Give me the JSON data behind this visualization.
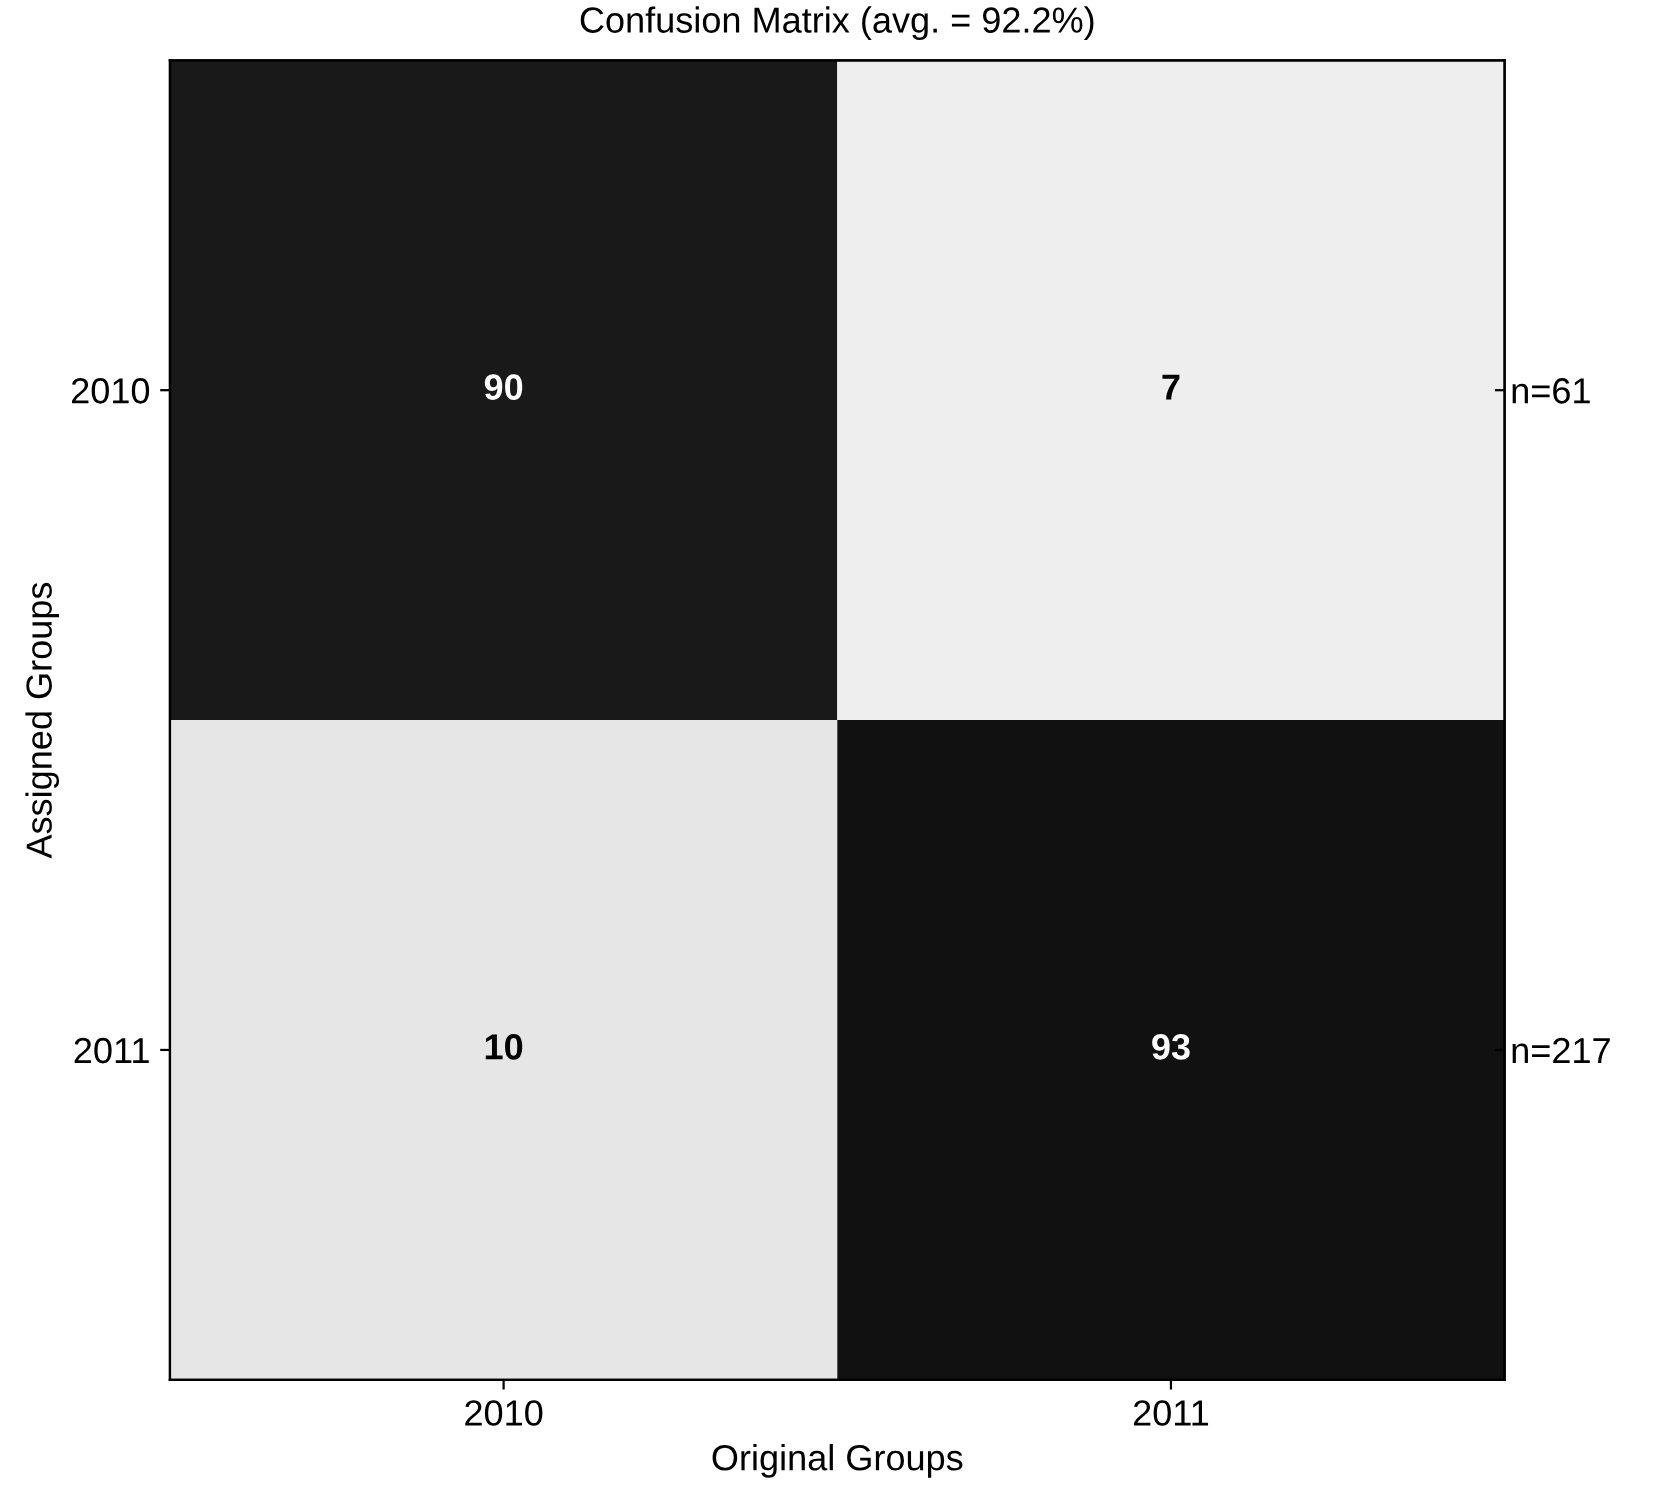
{
  "chart_data": {
    "type": "heatmap",
    "title": "Confusion Matrix (avg. = 92.2%)",
    "xlabel": "Original Groups",
    "ylabel": "Assigned Groups",
    "categories": [
      "2010",
      "2011"
    ],
    "y_categories": [
      "2010",
      "2011"
    ],
    "y2_categories": [
      "n=61",
      "n=217"
    ],
    "cells": [
      [
        90,
        7
      ],
      [
        10,
        93
      ]
    ],
    "data_labels": true
  }
}
